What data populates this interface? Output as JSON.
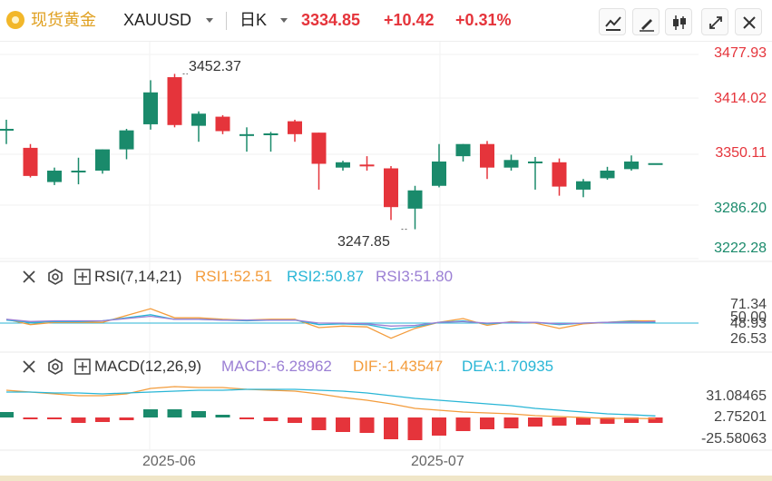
{
  "header": {
    "symbol_cn": "现货黄金",
    "symbol_code": "XAUUSD",
    "period": "日K",
    "last_price": "3334.85",
    "change": "+10.42",
    "change_pct": "+0.31%",
    "toolbar": [
      "line-chart-icon",
      "draw-pen-icon",
      "candlestick-icon",
      "collapse-icon",
      "close-icon"
    ]
  },
  "colors": {
    "up": "#e5343b",
    "down": "#1a8a6b",
    "rsi1": "#f39c3c",
    "rsi2": "#29b6d6",
    "rsi3": "#9b7fd4",
    "dif": "#f39c3c",
    "dea": "#29b6d6",
    "gold": "#e0a020"
  },
  "price_axis": {
    "ticks": [
      "3477.93",
      "3414.02",
      "3350.11",
      "3286.20",
      "3222.28"
    ],
    "high_annotation": "3452.37",
    "low_annotation": "3247.85"
  },
  "rsi": {
    "title": "RSI(7,14,21)",
    "rsi1_label": "RSI1:52.51",
    "rsi2_label": "RSI2:50.87",
    "rsi3_label": "RSI3:51.80",
    "ticks": [
      "71.34",
      "50.00",
      "48.93",
      "26.53"
    ]
  },
  "macd": {
    "title": "MACD(12,26,9)",
    "macd_label": "MACD:-6.28962",
    "dif_label": "DIF:-1.43547",
    "dea_label": "DEA:1.70935",
    "ticks": [
      "31.08465",
      "2.75201",
      "-25.58063"
    ]
  },
  "x_axis": {
    "labels": [
      "2025-06",
      "2025-07"
    ]
  },
  "chart_data": [
    {
      "type": "candlestick",
      "title": "",
      "dates": [
        "d1",
        "d2",
        "d3",
        "d4",
        "d5",
        "d6",
        "d7",
        "d8",
        "d9",
        "d10",
        "d11",
        "d12",
        "d13",
        "d14",
        "d15",
        "d16",
        "d17",
        "d18",
        "d19",
        "d20",
        "d21",
        "d22",
        "d23",
        "d24",
        "d25",
        "d26",
        "d27",
        "d28"
      ],
      "ohlc": [
        [
          3378,
          3380,
          3360,
          3392
        ],
        [
          3355,
          3318,
          3316,
          3360
        ],
        [
          3310,
          3325,
          3306,
          3329
        ],
        [
          3325,
          3325,
          3307,
          3342
        ],
        [
          3325,
          3353,
          3321,
          3353
        ],
        [
          3353,
          3378,
          3340,
          3380
        ],
        [
          3386,
          3428,
          3379,
          3444
        ],
        [
          3448,
          3385,
          3382,
          3452.37
        ],
        [
          3384,
          3400,
          3363,
          3403
        ],
        [
          3396,
          3377,
          3373,
          3398
        ],
        [
          3373,
          3373,
          3350,
          3382
        ],
        [
          3373,
          3374,
          3350,
          3376
        ],
        [
          3390,
          3373,
          3363,
          3392
        ],
        [
          3375,
          3334,
          3300,
          3375
        ],
        [
          3329,
          3336,
          3325,
          3338
        ],
        [
          3333,
          3332,
          3325,
          3344
        ],
        [
          3328,
          3277,
          3260,
          3331
        ],
        [
          3275,
          3299,
          3247.85,
          3305
        ],
        [
          3305,
          3337,
          3303,
          3360
        ],
        [
          3344,
          3360,
          3337,
          3360
        ],
        [
          3360,
          3329,
          3314,
          3364
        ],
        [
          3329,
          3339,
          3325,
          3346
        ],
        [
          3337,
          3337,
          3300,
          3343
        ],
        [
          3336,
          3304,
          3292,
          3341
        ],
        [
          3300,
          3311,
          3290,
          3314
        ],
        [
          3315,
          3325,
          3313,
          3330
        ],
        [
          3327,
          3337,
          3325,
          3345
        ],
        [
          3334.85,
          3334.85,
          3334.85,
          3334.85
        ]
      ],
      "ylim": [
        3200,
        3485
      ]
    },
    {
      "type": "line",
      "title": "RSI(7,14,21)",
      "series": [
        {
          "name": "RSI1",
          "values": [
            55,
            48,
            51,
            51,
            51,
            60,
            69,
            57,
            57,
            55,
            54,
            55,
            55,
            44,
            46,
            45,
            30,
            43,
            51,
            56,
            47,
            52,
            50,
            43,
            49,
            51,
            53,
            53
          ]
        },
        {
          "name": "RSI2",
          "values": [
            54,
            51,
            52,
            52,
            53,
            57,
            61,
            55,
            55,
            54,
            53,
            54,
            54,
            48,
            49,
            48,
            42,
            45,
            51,
            53,
            49,
            51,
            51,
            48,
            50,
            51,
            52,
            51
          ]
        },
        {
          "name": "RSI3",
          "values": [
            55,
            52,
            53,
            53,
            53,
            56,
            59,
            55,
            55,
            54,
            54,
            54,
            54,
            50,
            50,
            49,
            46,
            47,
            51,
            52,
            50,
            51,
            51,
            49,
            50,
            51,
            51,
            52
          ]
        }
      ],
      "ylim": [
        20,
        80
      ]
    },
    {
      "type": "bar+line",
      "title": "MACD(12,26,9)",
      "macd_hist": [
        6,
        -1,
        -1,
        -6,
        -5,
        -3,
        9,
        9,
        7,
        3,
        -1,
        -4,
        -6,
        -14,
        -16,
        -17,
        -24,
        -25,
        -20,
        -15,
        -13,
        -12,
        -10,
        -9,
        -8,
        -7,
        -6,
        -6
      ],
      "series": [
        {
          "name": "DIF",
          "values": [
            30,
            28,
            26,
            24,
            24,
            26,
            32,
            34,
            33,
            33,
            31,
            30,
            29,
            26,
            22,
            19,
            15,
            10,
            8,
            6,
            5,
            4,
            2,
            1,
            0,
            -1,
            -1,
            -1.4
          ]
        },
        {
          "name": "DEA",
          "values": [
            28,
            28,
            27,
            27,
            26,
            27,
            28,
            29,
            30,
            30,
            31,
            31,
            31,
            30,
            29,
            27,
            24,
            21,
            19,
            17,
            15,
            13,
            10,
            8,
            6,
            4,
            3,
            1.7
          ]
        }
      ],
      "ylim": [
        -30,
        40
      ]
    }
  ]
}
